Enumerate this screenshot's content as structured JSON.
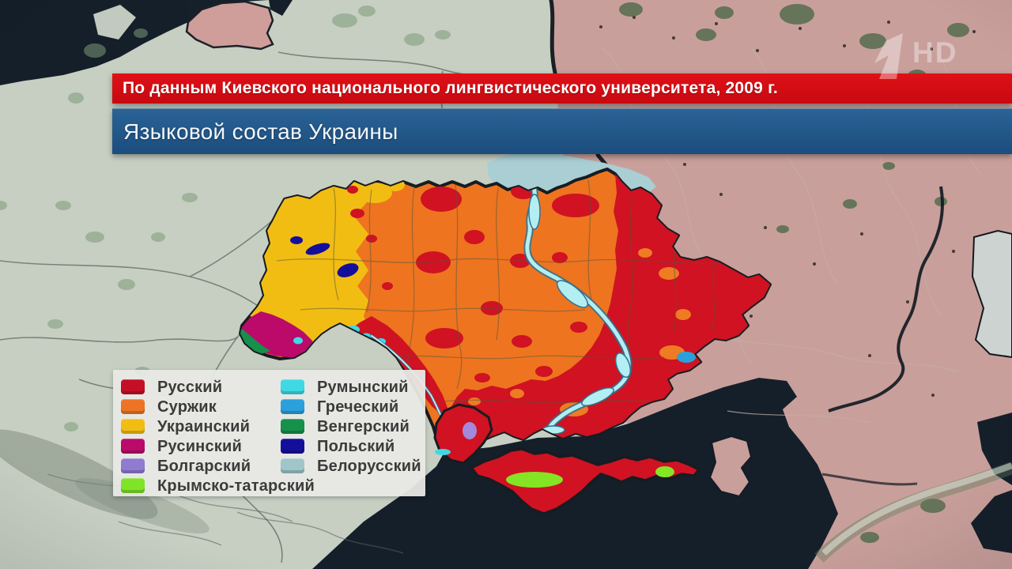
{
  "header": {
    "source_text": "По данным Киевского национального лингвистического университета, 2009 г.",
    "source_bg": "#d40b12",
    "title": "Языковой состав Украины",
    "title_bg": "#1d5587"
  },
  "watermark": {
    "channel": "1",
    "hd": "HD"
  },
  "legend": {
    "items": [
      {
        "label": "Русский",
        "color": "#c50f26",
        "column": 1
      },
      {
        "label": "Суржик",
        "color": "#ee7425",
        "column": 1
      },
      {
        "label": "Украинский",
        "color": "#f2bd13",
        "column": 1
      },
      {
        "label": "Русинский",
        "color": "#bb0a6a",
        "column": 1
      },
      {
        "label": "Болгарский",
        "color": "#8f7bd0",
        "column": 1
      },
      {
        "label": "Крымско-татарский",
        "color": "#7fe427",
        "column": 1
      },
      {
        "label": "Румынский",
        "color": "#3fd9e4",
        "column": 2
      },
      {
        "label": "Греческий",
        "color": "#2aa0dc",
        "column": 2
      },
      {
        "label": "Венгерский",
        "color": "#15914b",
        "column": 2
      },
      {
        "label": "Польский",
        "color": "#140f9b",
        "column": 2
      },
      {
        "label": "Белорусский",
        "color": "#9fc6c9",
        "column": 2
      }
    ]
  },
  "map": {
    "sea_color": "#15202b",
    "europe_land_color": "#c7cfc3",
    "russia_land_color": "#c99f9b",
    "ukraine_border_color": "#171c21"
  }
}
